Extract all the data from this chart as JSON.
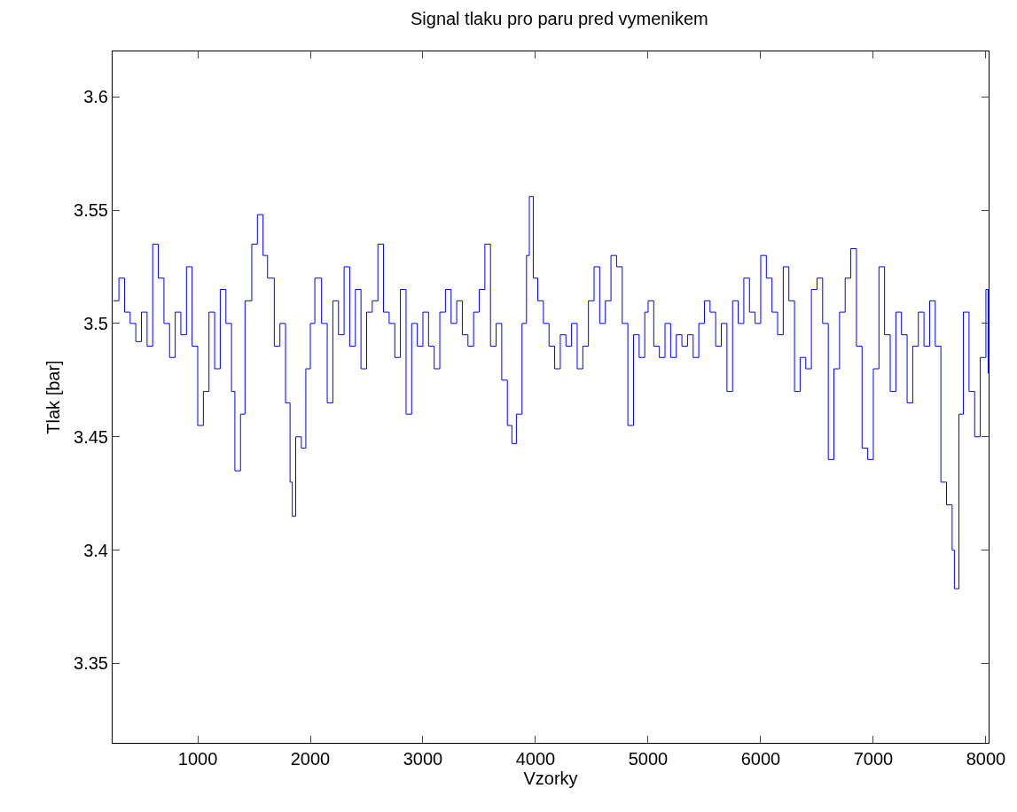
{
  "chart_data": {
    "type": "step",
    "title": "Signal tlaku pro paru pred vymenikem",
    "xlabel": "Vzorky",
    "ylabel": "Tlak [bar]",
    "x": [
      250,
      300,
      350,
      400,
      450,
      500,
      550,
      600,
      650,
      700,
      750,
      800,
      850,
      900,
      950,
      1000,
      1050,
      1100,
      1150,
      1200,
      1250,
      1300,
      1330,
      1380,
      1420,
      1480,
      1530,
      1580,
      1620,
      1680,
      1730,
      1780,
      1820,
      1840,
      1870,
      1920,
      1960,
      2000,
      2040,
      2100,
      2150,
      2200,
      2250,
      2300,
      2350,
      2400,
      2450,
      2500,
      2550,
      2600,
      2650,
      2700,
      2750,
      2800,
      2850,
      2900,
      2950,
      3000,
      3050,
      3100,
      3150,
      3200,
      3250,
      3300,
      3350,
      3400,
      3450,
      3500,
      3550,
      3600,
      3650,
      3700,
      3750,
      3790,
      3830,
      3880,
      3920,
      3945,
      3980,
      4020,
      4070,
      4120,
      4170,
      4220,
      4270,
      4320,
      4370,
      4420,
      4470,
      4520,
      4570,
      4620,
      4670,
      4720,
      4770,
      4820,
      4870,
      4920,
      4970,
      5000,
      5050,
      5100,
      5150,
      5200,
      5250,
      5300,
      5350,
      5400,
      5450,
      5500,
      5550,
      5600,
      5650,
      5700,
      5750,
      5800,
      5850,
      5900,
      5950,
      6000,
      6050,
      6100,
      6150,
      6200,
      6250,
      6300,
      6350,
      6400,
      6450,
      6500,
      6550,
      6600,
      6650,
      6700,
      6750,
      6800,
      6850,
      6900,
      6950,
      7000,
      7050,
      7100,
      7150,
      7200,
      7250,
      7300,
      7350,
      7400,
      7450,
      7500,
      7550,
      7600,
      7650,
      7700,
      7720,
      7760,
      7800,
      7850,
      7900,
      7950,
      8000,
      8020
    ],
    "series": [
      {
        "color": "#0000ff",
        "values": [
          3.51,
          3.52,
          3.505,
          3.5,
          3.492,
          3.505,
          3.49,
          3.535,
          3.52,
          3.5,
          3.485,
          3.505,
          3.495,
          3.525,
          3.49,
          3.455,
          3.47,
          3.505,
          3.48,
          3.515,
          3.5,
          3.47,
          3.435,
          3.46,
          3.51,
          3.535,
          3.548,
          3.53,
          3.52,
          3.49,
          3.5,
          3.465,
          3.43,
          3.415,
          3.45,
          3.445,
          3.48,
          3.5,
          3.52,
          3.5,
          3.465,
          3.51,
          3.495,
          3.525,
          3.49,
          3.515,
          3.48,
          3.505,
          3.51,
          3.535,
          3.505,
          3.5,
          3.485,
          3.515,
          3.46,
          3.5,
          3.49,
          3.505,
          3.49,
          3.48,
          3.505,
          3.515,
          3.5,
          3.51,
          3.495,
          3.49,
          3.505,
          3.515,
          3.535,
          3.49,
          3.5,
          3.475,
          3.455,
          3.447,
          3.46,
          3.5,
          3.53,
          3.556,
          3.52,
          3.51,
          3.5,
          3.49,
          3.48,
          3.495,
          3.49,
          3.5,
          3.48,
          3.49,
          3.51,
          3.525,
          3.5,
          3.51,
          3.53,
          3.525,
          3.5,
          3.455,
          3.495,
          3.485,
          3.505,
          3.51,
          3.49,
          3.485,
          3.5,
          3.485,
          3.495,
          3.49,
          3.495,
          3.485,
          3.5,
          3.51,
          3.505,
          3.49,
          3.5,
          3.47,
          3.51,
          3.5,
          3.52,
          3.505,
          3.5,
          3.53,
          3.52,
          3.505,
          3.495,
          3.525,
          3.51,
          3.47,
          3.485,
          3.48,
          3.515,
          3.52,
          3.5,
          3.44,
          3.48,
          3.505,
          3.52,
          3.533,
          3.49,
          3.445,
          3.44,
          3.48,
          3.525,
          3.495,
          3.47,
          3.505,
          3.495,
          3.465,
          3.49,
          3.505,
          3.49,
          3.51,
          3.49,
          3.43,
          3.42,
          3.4,
          3.383,
          3.46,
          3.505,
          3.47,
          3.45,
          3.485,
          3.515,
          3.478
        ]
      }
    ],
    "xlim": [
      244,
      8024
    ],
    "ylim": [
      3.315,
      3.62
    ],
    "xticks": [
      1000,
      2000,
      3000,
      4000,
      5000,
      6000,
      7000,
      8000
    ],
    "yticks": [
      3.35,
      3.4,
      3.45,
      3.5,
      3.55,
      3.6
    ],
    "grid": false,
    "marker": "none",
    "line_style": "solid"
  }
}
